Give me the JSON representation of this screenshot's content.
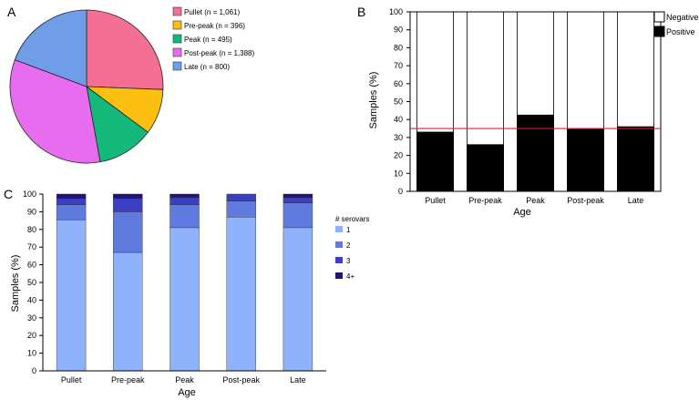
{
  "panel_labels": {
    "a": "A",
    "b": "B",
    "c": "C"
  },
  "chart_data": [
    {
      "id": "A",
      "type": "pie",
      "categories": [
        "Pullet",
        "Pre-peak",
        "Peak",
        "Post-peak",
        "Late"
      ],
      "values": [
        1061,
        396,
        495,
        1388,
        800
      ],
      "legend": [
        "Pullet (n = 1,061)",
        "Pre-peak (n = 396)",
        "Peak (n = 495)",
        "Post-peak (n = 1,388)",
        "Late (n = 800)"
      ],
      "colors": [
        "#f36f94",
        "#fdbf10",
        "#14b87a",
        "#e76cef",
        "#6f9de8"
      ]
    },
    {
      "id": "B",
      "type": "bar",
      "stacked": true,
      "categories": [
        "Pullet",
        "Pre-peak",
        "Peak",
        "Post-peak",
        "Late"
      ],
      "series": [
        {
          "name": "Positive",
          "values": [
            33,
            26,
            42.5,
            35,
            36
          ],
          "color": "#000000"
        },
        {
          "name": "Negative",
          "values": [
            67,
            74,
            57.5,
            65,
            64
          ],
          "color": "#ffffff"
        }
      ],
      "legend": [
        "Negative",
        "Positive"
      ],
      "xlabel": "Age",
      "ylabel": "Samples (%)",
      "ylim": [
        0,
        100
      ],
      "yticks": [
        "0",
        "10",
        "20",
        "30",
        "40",
        "50",
        "60",
        "70",
        "80",
        "90",
        "100"
      ],
      "reference_line": {
        "value": 35,
        "color": "#e02020"
      }
    },
    {
      "id": "C",
      "type": "bar",
      "stacked": true,
      "categories": [
        "Pullet",
        "Pre-peak",
        "Peak",
        "Post-peak",
        "Late"
      ],
      "series": [
        {
          "name": "1",
          "values": [
            85.5,
            67,
            81,
            87,
            81
          ],
          "color": "#8eb2fb"
        },
        {
          "name": "2",
          "values": [
            8.5,
            23,
            13,
            9,
            14
          ],
          "color": "#5f7be0"
        },
        {
          "name": "3",
          "values": [
            3.5,
            7.5,
            4,
            4,
            3
          ],
          "color": "#3a3fc4"
        },
        {
          "name": "4+",
          "values": [
            2.5,
            2.5,
            2,
            0,
            2
          ],
          "color": "#22127e"
        }
      ],
      "legend_title": "# serovars",
      "legend": [
        "1",
        "2",
        "3",
        "4+"
      ],
      "xlabel": "Age",
      "ylabel": "Samples (%)",
      "ylim": [
        0,
        100
      ],
      "yticks": [
        "0",
        "10",
        "20",
        "30",
        "40",
        "50",
        "60",
        "70",
        "80",
        "90",
        "100"
      ]
    }
  ]
}
